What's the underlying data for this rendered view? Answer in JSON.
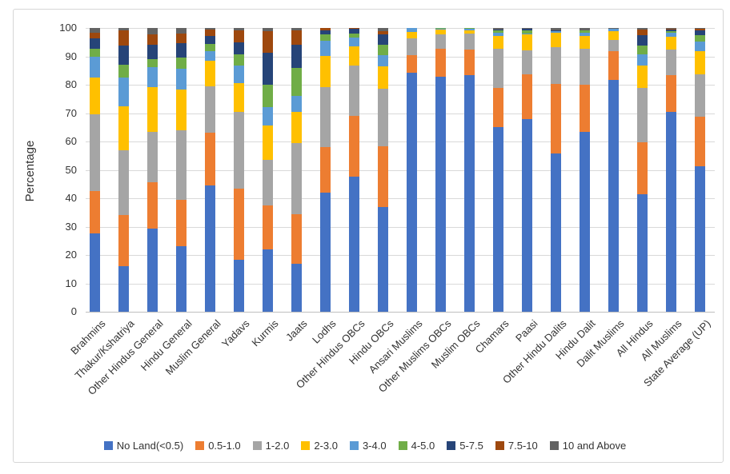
{
  "y_axis_title": "Percentage",
  "chart_data": {
    "type": "bar",
    "stacked": true,
    "orientation": "vertical",
    "title": "",
    "xlabel": "",
    "ylabel": "Percentage",
    "ylim": [
      0,
      100
    ],
    "ytick_step": 10,
    "ytick_labels": [
      "0",
      "10",
      "20",
      "30",
      "40",
      "50",
      "60",
      "70",
      "80",
      "90",
      "100"
    ],
    "grid": true,
    "legend_position": "bottom",
    "categories": [
      "Brahmins",
      "Thakur/Kshatriya",
      "Other Hindus General",
      "Hindu General",
      "Muslim General",
      "Yadavs",
      "Kurmis",
      "Jaats",
      "Lodhs",
      "Other Hindus OBCs",
      "Hindu OBCs",
      "Ansari Muslims",
      "Other Muslims OBCs",
      "Muslim OBCs",
      "Chamars",
      "Paasi",
      "Other Hindu Dalits",
      "Hindu Dalit",
      "Dalit Muslims",
      "All Hindus",
      "All Muslims",
      "State Average (UP)"
    ],
    "series": [
      {
        "name": "No Land(<0.5)",
        "color": "#4472C4",
        "values": [
          27.5,
          16.0,
          29.2,
          23.0,
          44.5,
          18.4,
          22.0,
          17.0,
          42.0,
          47.6,
          36.8,
          84.1,
          82.9,
          83.4,
          65.0,
          68.0,
          55.8,
          63.3,
          81.6,
          41.4,
          70.5,
          51.4
        ]
      },
      {
        "name": "0.5-1.0",
        "color": "#ED7D31",
        "values": [
          15.0,
          18.0,
          16.4,
          16.5,
          18.5,
          25.0,
          15.5,
          17.5,
          16.0,
          21.4,
          21.6,
          6.3,
          9.8,
          8.9,
          14.0,
          15.8,
          24.4,
          16.7,
          10.1,
          18.3,
          13.0,
          17.3
        ]
      },
      {
        "name": "1-2.0",
        "color": "#A5A5A5",
        "values": [
          27.0,
          23.0,
          17.9,
          24.5,
          16.5,
          26.9,
          16.0,
          25.0,
          21.2,
          17.9,
          20.2,
          5.9,
          5.1,
          5.6,
          13.8,
          8.3,
          13.0,
          12.7,
          4.0,
          19.2,
          9.0,
          15.1
        ]
      },
      {
        "name": "2-3.0",
        "color": "#FFC000",
        "values": [
          13.1,
          15.5,
          15.7,
          14.2,
          9.0,
          10.3,
          12.0,
          11.0,
          10.9,
          6.6,
          7.9,
          2.3,
          1.6,
          1.4,
          4.3,
          5.7,
          5.0,
          4.5,
          3.2,
          7.9,
          4.5,
          7.9
        ]
      },
      {
        "name": "3-4.0",
        "color": "#5B9BD5",
        "values": [
          7.2,
          9.9,
          7.0,
          7.5,
          3.4,
          6.2,
          6.5,
          5.5,
          5.5,
          3.0,
          3.8,
          1.4,
          0.2,
          0.3,
          1.2,
          0.3,
          0.6,
          1.2,
          0.8,
          3.8,
          1.3,
          3.4
        ]
      },
      {
        "name": "4-5.0",
        "color": "#70AD47",
        "values": [
          3.0,
          4.7,
          2.8,
          3.8,
          2.6,
          4.0,
          8.0,
          10.0,
          2.1,
          1.5,
          3.8,
          0,
          0.4,
          0.4,
          1.0,
          1.1,
          0.3,
          0.8,
          0,
          3.3,
          0.7,
          2.3
        ]
      },
      {
        "name": "5-7.5",
        "color": "#264478",
        "values": [
          3.5,
          6.8,
          5.2,
          5.1,
          2.8,
          4.1,
          11.3,
          8.0,
          1.5,
          1.6,
          3.7,
          0,
          0,
          0,
          0.2,
          0.6,
          0.1,
          0,
          0,
          3.5,
          0.5,
          1.9
        ]
      },
      {
        "name": "7.5-10",
        "color": "#9E480E",
        "values": [
          2.1,
          5.2,
          3.5,
          3.3,
          2.2,
          4.2,
          7.7,
          5.2,
          0.8,
          0.4,
          1.2,
          0,
          0,
          0,
          0,
          0,
          0,
          0,
          0,
          2.0,
          0.2,
          0.4
        ]
      },
      {
        "name": "10 and Above",
        "color": "#636363",
        "values": [
          1.6,
          0.9,
          2.3,
          2.1,
          0.5,
          0.9,
          1.0,
          0.8,
          0,
          0,
          1.0,
          0,
          0,
          0,
          0.5,
          0.2,
          0.8,
          0.8,
          0.3,
          0.6,
          0.3,
          0.3
        ]
      }
    ]
  }
}
